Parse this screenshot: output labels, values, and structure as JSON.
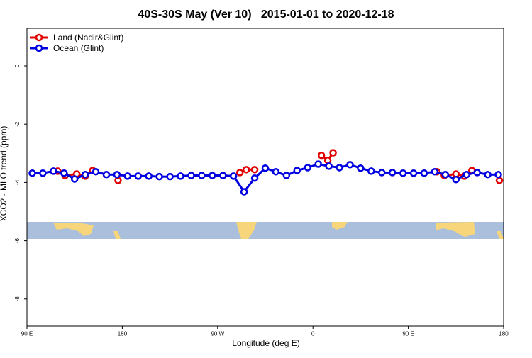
{
  "chart_data": {
    "type": "line",
    "title": "40S-30S May (Ver 10)   2015-01-01 to 2020-12-18",
    "x_label": "Longitude (deg E)",
    "y_label": "XCO2 - MLO trend (ppm)",
    "xlim": [
      90,
      540
    ],
    "xticks": [
      {
        "value": 90,
        "label": "90 E"
      },
      {
        "value": 180,
        "label": "180"
      },
      {
        "value": 270,
        "label": "90 W"
      },
      {
        "value": 360,
        "label": "0"
      },
      {
        "value": 450,
        "label": "90 E"
      },
      {
        "value": 540,
        "label": "180"
      }
    ],
    "ylim": [
      -8.93,
      1.29
    ],
    "yticks": [
      -8,
      -6,
      -4,
      -2,
      0
    ],
    "legend": "top-left",
    "series": [
      {
        "name": "Land (Nadir&Glint)",
        "color": "#e00000",
        "x": [
          119,
          126,
          137,
          145,
          152,
          176,
          291,
          297,
          305,
          368,
          374,
          379,
          477,
          484,
          495,
          503,
          510,
          536
        ],
        "values": [
          -3.61,
          -3.76,
          -3.71,
          -3.78,
          -3.59,
          -3.93,
          -3.66,
          -3.56,
          -3.56,
          -3.07,
          -3.24,
          -2.98,
          -3.63,
          -3.76,
          -3.71,
          -3.78,
          -3.59,
          -3.93
        ]
      },
      {
        "name": "Ocean (Glint)",
        "color": "#0000e0",
        "x": [
          95,
          105,
          115,
          125,
          135,
          145,
          155,
          165,
          175,
          185,
          195,
          205,
          215,
          225,
          235,
          245,
          255,
          265,
          275,
          285,
          295,
          305,
          315,
          325,
          335,
          345,
          355,
          365,
          375,
          385,
          395,
          405,
          415,
          425,
          435,
          445,
          455,
          465,
          475,
          485,
          495,
          505,
          515,
          525,
          535
        ],
        "values": [
          -3.68,
          -3.68,
          -3.61,
          -3.68,
          -3.88,
          -3.73,
          -3.63,
          -3.73,
          -3.73,
          -3.78,
          -3.78,
          -3.78,
          -3.8,
          -3.8,
          -3.78,
          -3.76,
          -3.76,
          -3.76,
          -3.76,
          -3.78,
          -4.32,
          -3.85,
          -3.51,
          -3.63,
          -3.76,
          -3.59,
          -3.49,
          -3.37,
          -3.44,
          -3.49,
          -3.39,
          -3.51,
          -3.61,
          -3.66,
          -3.66,
          -3.68,
          -3.68,
          -3.68,
          -3.63,
          -3.73,
          -3.9,
          -3.73,
          -3.66,
          -3.73,
          -3.73
        ]
      }
    ]
  }
}
